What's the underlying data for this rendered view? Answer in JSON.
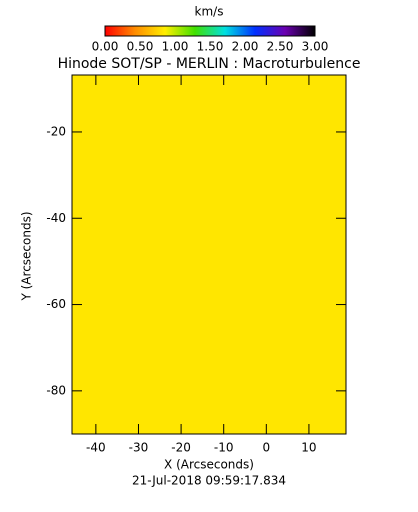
{
  "chart_data": {
    "type": "image",
    "title": "Hinode SOT/SP - MERLIN : Macroturbulence",
    "x_label": "X (Arcseconds)",
    "y_label": "Y (Arcseconds)",
    "footer": "21-Jul-2018 09:59:17.834",
    "color": "#ffe600",
    "xlim": [
      -45.6,
      18.7
    ],
    "ylim": [
      -90.0,
      -6.8
    ],
    "xticks": [
      -40,
      -30,
      -20,
      -10,
      0,
      10
    ],
    "yticks": [
      -20,
      -40,
      -60,
      -80
    ],
    "colorbar": {
      "label": "km/s",
      "lim": [
        0,
        3
      ],
      "ticks": [
        {
          "value": 0,
          "label": "0.00"
        },
        {
          "value": 0.5,
          "label": "0.50"
        },
        {
          "value": 1,
          "label": "1.00"
        },
        {
          "value": 1.5,
          "label": "1.50"
        },
        {
          "value": 2,
          "label": "2.00"
        },
        {
          "value": 2.5,
          "label": "2.50"
        },
        {
          "value": 3,
          "label": "3.00"
        }
      ],
      "colors": [
        "#ff0000",
        "#ff8c00",
        "#ffee00",
        "#40e000",
        "#00e0e0",
        "#0030ff",
        "#6a00b0",
        "#000000"
      ]
    }
  }
}
